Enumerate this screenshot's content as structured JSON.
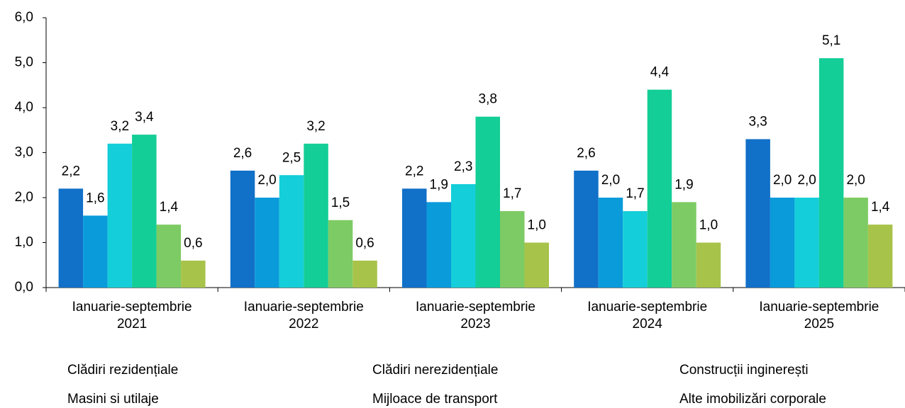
{
  "chart_data": {
    "type": "bar",
    "categories": [
      "Ianuarie-septembrie 2021",
      "Ianuarie-septembrie 2022",
      "Ianuarie-septembrie 2023",
      "Ianuarie-septembrie 2024",
      "Ianuarie-septembrie 2025"
    ],
    "series": [
      {
        "name": "Clădiri rezidențiale",
        "color": "#1170c8",
        "values": [
          2.2,
          2.6,
          2.2,
          2.6,
          3.3
        ],
        "value_labels": [
          "2,2",
          "2,6",
          "2,2",
          "2,6",
          "3,3"
        ]
      },
      {
        "name": "Clădiri nerezidențiale",
        "color": "#0a9bdb",
        "values": [
          1.6,
          2.0,
          1.9,
          2.0,
          2.0
        ],
        "value_labels": [
          "1,6",
          "2,0",
          "1,9",
          "2,0",
          "2,0"
        ]
      },
      {
        "name": "Construcții inginerești",
        "color": "#14ced9",
        "values": [
          3.2,
          2.5,
          2.3,
          1.7,
          2.0
        ],
        "value_labels": [
          "3,2",
          "2,5",
          "2,3",
          "1,7",
          "2,0"
        ]
      },
      {
        "name": "Masini si utilaje",
        "color": "#13ce96",
        "values": [
          3.4,
          3.2,
          3.8,
          4.4,
          5.1
        ],
        "value_labels": [
          "3,4",
          "3,2",
          "3,8",
          "4,4",
          "5,1"
        ]
      },
      {
        "name": "Mijloace de transport",
        "color": "#7dcb64",
        "values": [
          1.4,
          1.5,
          1.7,
          1.9,
          2.0
        ],
        "value_labels": [
          "1,4",
          "1,5",
          "1,7",
          "1,9",
          "2,0"
        ]
      },
      {
        "name": "Alte imobilizări corporale",
        "color": "#a8c34a",
        "values": [
          0.6,
          0.6,
          1.0,
          1.0,
          1.4
        ],
        "value_labels": [
          "0,6",
          "0,6",
          "1,0",
          "1,0",
          "1,4"
        ]
      }
    ],
    "ylim": [
      0,
      6
    ],
    "yticks": [
      {
        "value": 0,
        "label": "0,0"
      },
      {
        "value": 1,
        "label": "1,0"
      },
      {
        "value": 2,
        "label": "2,0"
      },
      {
        "value": 3,
        "label": "3,0"
      },
      {
        "value": 4,
        "label": "4,0"
      },
      {
        "value": 5,
        "label": "5,0"
      },
      {
        "value": 6,
        "label": "6,0"
      }
    ],
    "grid": false,
    "legend": "bottom"
  }
}
